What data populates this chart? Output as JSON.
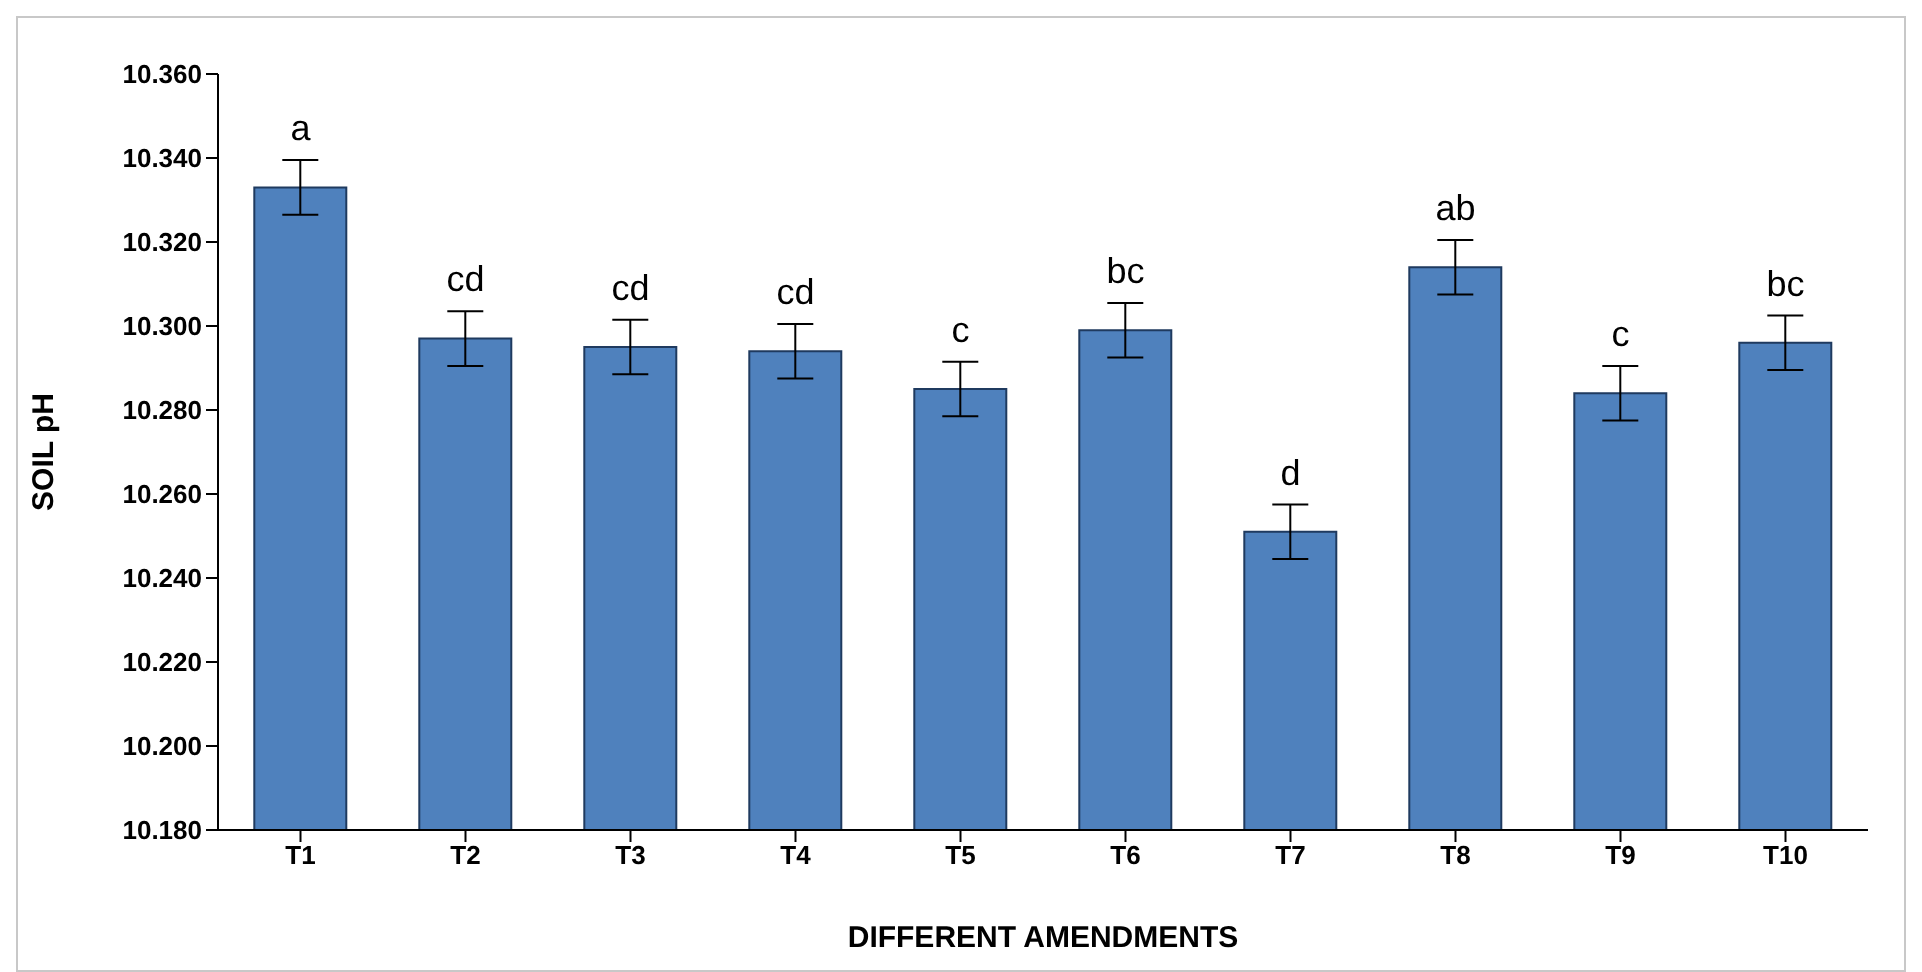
{
  "chart_data": {
    "type": "bar",
    "xlabel": "DIFFERENT AMENDMENTS",
    "ylabel": "SOIL pH",
    "categories": [
      "T1",
      "T2",
      "T3",
      "T4",
      "T5",
      "T6",
      "T7",
      "T8",
      "T9",
      "T10"
    ],
    "values": [
      10.333,
      10.297,
      10.295,
      10.294,
      10.285,
      10.299,
      10.251,
      10.314,
      10.284,
      10.296
    ],
    "errors": [
      0.0065,
      0.0065,
      0.0065,
      0.0065,
      0.0065,
      0.0065,
      0.0065,
      0.0065,
      0.0065,
      0.0065
    ],
    "color": "#4f81bd",
    "ylim": [
      10.18,
      10.36
    ],
    "yticks": [
      {
        "value": 10.18,
        "label": "10.180"
      },
      {
        "value": 10.2,
        "label": "10.200"
      },
      {
        "value": 10.22,
        "label": "10.220"
      },
      {
        "value": 10.24,
        "label": "10.240"
      },
      {
        "value": 10.26,
        "label": "10.260"
      },
      {
        "value": 10.28,
        "label": "10.280"
      },
      {
        "value": 10.3,
        "label": "10.300"
      },
      {
        "value": 10.32,
        "label": "10.320"
      },
      {
        "value": 10.34,
        "label": "10.340"
      },
      {
        "value": 10.36,
        "label": "10.360"
      }
    ],
    "annotations": [
      {
        "text": "a",
        "x": "T1",
        "y": 10.3395
      },
      {
        "text": "cd",
        "x": "T2",
        "y": 10.3035
      },
      {
        "text": "cd",
        "x": "T3",
        "y": 10.3015
      },
      {
        "text": "cd",
        "x": "T4",
        "y": 10.3005
      },
      {
        "text": "c",
        "x": "T5",
        "y": 10.2915
      },
      {
        "text": "bc",
        "x": "T6",
        "y": 10.3055
      },
      {
        "text": "d",
        "x": "T7",
        "y": 10.2575
      },
      {
        "text": "ab",
        "x": "T8",
        "y": 10.3205
      },
      {
        "text": "c",
        "x": "T9",
        "y": 10.2905
      },
      {
        "text": "bc",
        "x": "T10",
        "y": 10.3025
      }
    ],
    "grid": false,
    "legend": false
  }
}
